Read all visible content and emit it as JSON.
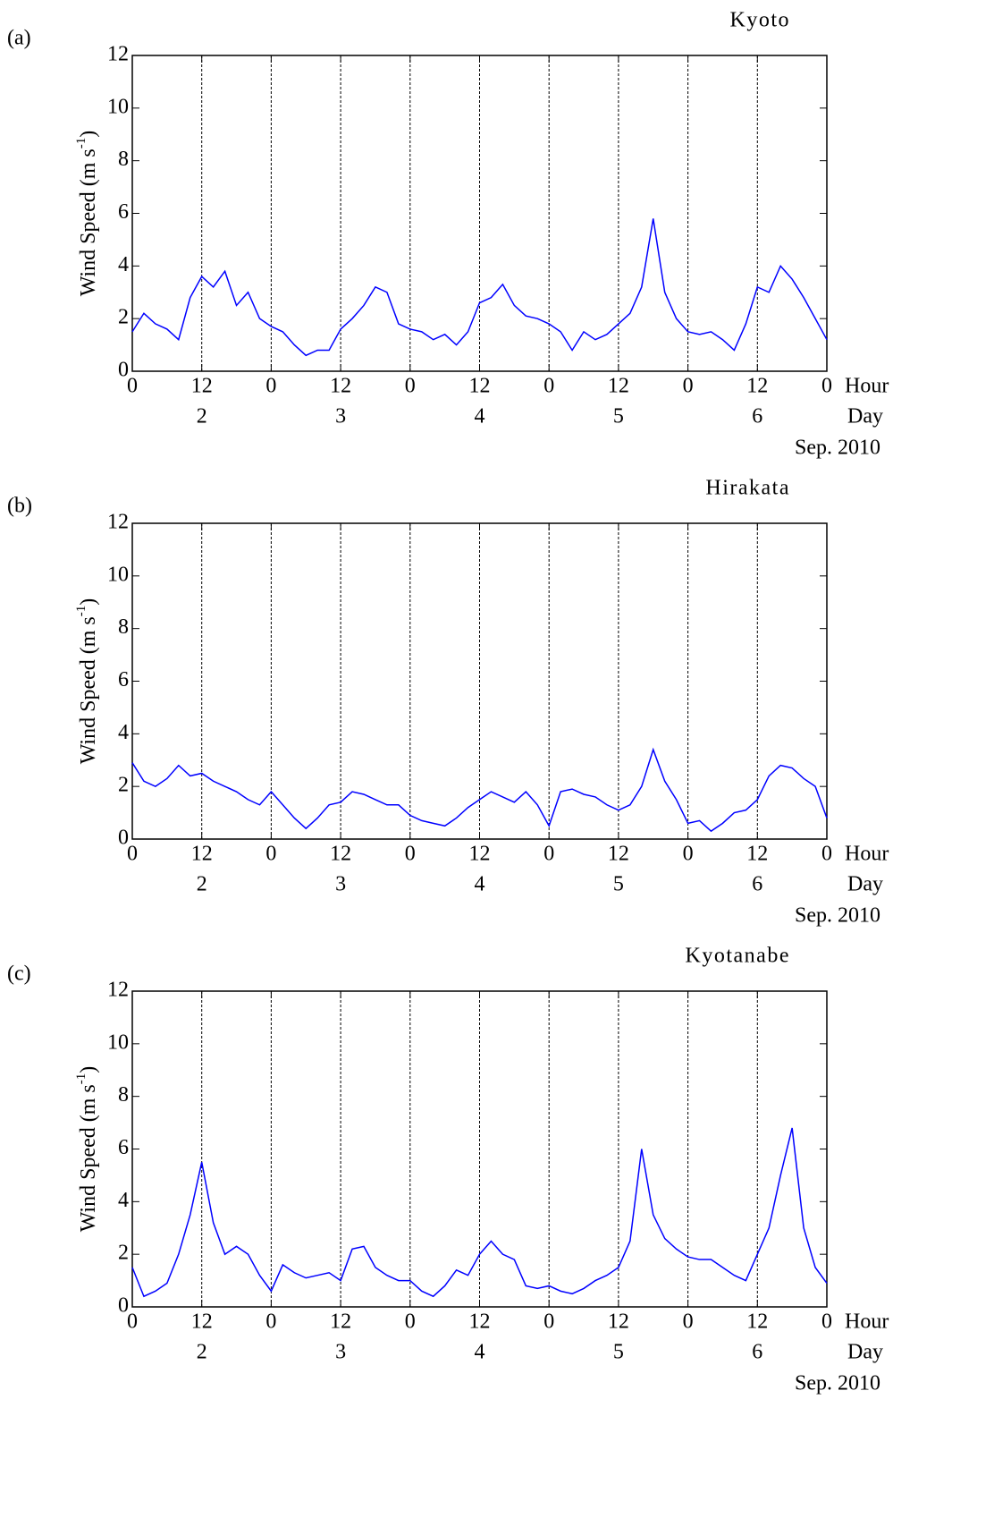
{
  "chart_data": [
    {
      "type": "line",
      "panel_label": "(a)",
      "title": "Kyoto",
      "x": [
        0,
        2,
        4,
        6,
        8,
        10,
        12,
        14,
        16,
        18,
        20,
        22,
        24,
        26,
        28,
        30,
        32,
        34,
        36,
        38,
        40,
        42,
        44,
        46,
        48,
        50,
        52,
        54,
        56,
        58,
        60,
        62,
        64,
        66,
        68,
        70,
        72,
        74,
        76,
        78,
        80,
        82,
        84,
        86,
        88,
        90,
        92,
        94,
        96,
        98,
        100,
        102,
        104,
        106,
        108,
        110,
        112,
        114,
        116,
        118,
        120
      ],
      "values": [
        1.5,
        2.2,
        1.8,
        1.6,
        1.2,
        2.8,
        3.6,
        3.2,
        3.8,
        2.5,
        3.0,
        2.0,
        1.7,
        1.5,
        1.0,
        0.6,
        0.8,
        0.8,
        1.6,
        2.0,
        2.5,
        3.2,
        3.0,
        1.8,
        1.6,
        1.5,
        1.2,
        1.4,
        1.0,
        1.5,
        2.6,
        2.8,
        3.3,
        2.5,
        2.1,
        2.0,
        1.8,
        1.5,
        0.8,
        1.5,
        1.2,
        1.4,
        1.8,
        2.2,
        3.2,
        5.8,
        3.0,
        2.0,
        1.5,
        1.4,
        1.5,
        1.2,
        0.8,
        1.8,
        3.2,
        3.0,
        4.0,
        3.5,
        2.8,
        2.0,
        1.2
      ],
      "color": "#0000ff",
      "xlim": [
        0,
        120
      ],
      "ylim": [
        0,
        12
      ],
      "xticks": [
        0,
        12,
        {
          "value": 24,
          "label": "0"
        },
        {
          "value": 36,
          "label": "12"
        },
        {
          "value": 48,
          "label": "0"
        },
        {
          "value": 60,
          "label": "12"
        },
        {
          "value": 72,
          "label": "0"
        },
        {
          "value": 84,
          "label": "12"
        },
        {
          "value": 96,
          "label": "0"
        },
        {
          "value": 108,
          "label": "12"
        },
        {
          "value": 120,
          "label": "0"
        }
      ],
      "day_ticks": [
        {
          "value": 12,
          "label": "2"
        },
        {
          "value": 36,
          "label": "3"
        },
        {
          "value": 60,
          "label": "4"
        },
        {
          "value": 84,
          "label": "5"
        },
        {
          "value": 108,
          "label": "6"
        }
      ],
      "yticks": [
        0,
        2,
        4,
        6,
        8,
        10,
        12
      ],
      "grid": true,
      "x_label": "Hour",
      "day_label": "Day",
      "month_label": "Sep. 2010",
      "y_label": "Wind Speed (m s",
      "y_label_sup": "-1",
      "y_label_end": ")"
    },
    {
      "type": "line",
      "panel_label": "(b)",
      "title": "Hirakata",
      "x": [
        0,
        2,
        4,
        6,
        8,
        10,
        12,
        14,
        16,
        18,
        20,
        22,
        24,
        26,
        28,
        30,
        32,
        34,
        36,
        38,
        40,
        42,
        44,
        46,
        48,
        50,
        52,
        54,
        56,
        58,
        60,
        62,
        64,
        66,
        68,
        70,
        72,
        74,
        76,
        78,
        80,
        82,
        84,
        86,
        88,
        90,
        92,
        94,
        96,
        98,
        100,
        102,
        104,
        106,
        108,
        110,
        112,
        114,
        116,
        118,
        120
      ],
      "values": [
        2.9,
        2.2,
        2.0,
        2.3,
        2.8,
        2.4,
        2.5,
        2.2,
        2.0,
        1.8,
        1.5,
        1.3,
        1.8,
        1.3,
        0.8,
        0.4,
        0.8,
        1.3,
        1.4,
        1.8,
        1.7,
        1.5,
        1.3,
        1.3,
        0.9,
        0.7,
        0.6,
        0.5,
        0.8,
        1.2,
        1.5,
        1.8,
        1.6,
        1.4,
        1.8,
        1.3,
        0.5,
        1.8,
        1.9,
        1.7,
        1.6,
        1.3,
        1.1,
        1.3,
        2.0,
        3.4,
        2.2,
        1.5,
        0.6,
        0.7,
        0.3,
        0.6,
        1.0,
        1.1,
        1.5,
        2.4,
        2.8,
        2.7,
        2.3,
        2.0,
        0.8
      ],
      "color": "#0000ff",
      "xlim": [
        0,
        120
      ],
      "ylim": [
        0,
        12
      ],
      "xticks": [
        0,
        12,
        {
          "value": 24,
          "label": "0"
        },
        {
          "value": 36,
          "label": "12"
        },
        {
          "value": 48,
          "label": "0"
        },
        {
          "value": 60,
          "label": "12"
        },
        {
          "value": 72,
          "label": "0"
        },
        {
          "value": 84,
          "label": "12"
        },
        {
          "value": 96,
          "label": "0"
        },
        {
          "value": 108,
          "label": "12"
        },
        {
          "value": 120,
          "label": "0"
        }
      ],
      "day_ticks": [
        {
          "value": 12,
          "label": "2"
        },
        {
          "value": 36,
          "label": "3"
        },
        {
          "value": 60,
          "label": "4"
        },
        {
          "value": 84,
          "label": "5"
        },
        {
          "value": 108,
          "label": "6"
        }
      ],
      "yticks": [
        0,
        2,
        4,
        6,
        8,
        10,
        12
      ],
      "grid": true,
      "x_label": "Hour",
      "day_label": "Day",
      "month_label": "Sep. 2010",
      "y_label": "Wind Speed (m s",
      "y_label_sup": "-1",
      "y_label_end": ")"
    },
    {
      "type": "line",
      "panel_label": "(c)",
      "title": "Kyotanabe",
      "x": [
        0,
        2,
        4,
        6,
        8,
        10,
        12,
        14,
        16,
        18,
        20,
        22,
        24,
        26,
        28,
        30,
        32,
        34,
        36,
        38,
        40,
        42,
        44,
        46,
        48,
        50,
        52,
        54,
        56,
        58,
        60,
        62,
        64,
        66,
        68,
        70,
        72,
        74,
        76,
        78,
        80,
        82,
        84,
        86,
        88,
        90,
        92,
        94,
        96,
        98,
        100,
        102,
        104,
        106,
        108,
        110,
        112,
        114,
        116,
        118,
        120
      ],
      "values": [
        1.5,
        0.4,
        0.6,
        0.9,
        2.0,
        3.5,
        5.5,
        3.2,
        2.0,
        2.3,
        2.0,
        1.2,
        0.6,
        1.6,
        1.3,
        1.1,
        1.2,
        1.3,
        1.0,
        2.2,
        2.3,
        1.5,
        1.2,
        1.0,
        1.0,
        0.6,
        0.4,
        0.8,
        1.4,
        1.2,
        2.0,
        2.5,
        2.0,
        1.8,
        0.8,
        0.7,
        0.8,
        0.6,
        0.5,
        0.7,
        1.0,
        1.2,
        1.5,
        2.5,
        6.0,
        3.5,
        2.6,
        2.2,
        1.9,
        1.8,
        1.8,
        1.5,
        1.2,
        1.0,
        2.0,
        3.0,
        5.0,
        6.8,
        3.0,
        1.5,
        0.9
      ],
      "color": "#0000ff",
      "xlim": [
        0,
        120
      ],
      "ylim": [
        0,
        12
      ],
      "xticks": [
        0,
        12,
        {
          "value": 24,
          "label": "0"
        },
        {
          "value": 36,
          "label": "12"
        },
        {
          "value": 48,
          "label": "0"
        },
        {
          "value": 60,
          "label": "12"
        },
        {
          "value": 72,
          "label": "0"
        },
        {
          "value": 84,
          "label": "12"
        },
        {
          "value": 96,
          "label": "0"
        },
        {
          "value": 108,
          "label": "12"
        },
        {
          "value": 120,
          "label": "0"
        }
      ],
      "day_ticks": [
        {
          "value": 12,
          "label": "2"
        },
        {
          "value": 36,
          "label": "3"
        },
        {
          "value": 60,
          "label": "4"
        },
        {
          "value": 84,
          "label": "5"
        },
        {
          "value": 108,
          "label": "6"
        }
      ],
      "yticks": [
        0,
        2,
        4,
        6,
        8,
        10,
        12
      ],
      "grid": true,
      "x_label": "Hour",
      "day_label": "Day",
      "month_label": "Sep. 2010",
      "y_label": "Wind Speed (m s",
      "y_label_sup": "-1",
      "y_label_end": ")"
    }
  ]
}
